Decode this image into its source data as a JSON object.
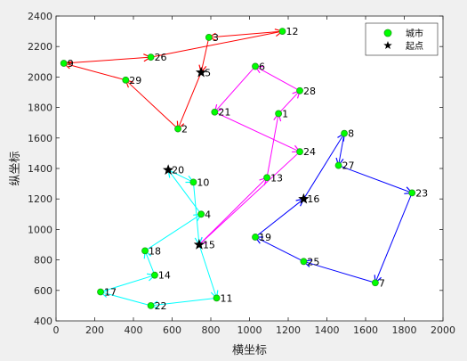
{
  "chart_data": {
    "type": "line",
    "xlabel": "横坐标",
    "ylabel": "纵坐标",
    "xlim": [
      0,
      2000
    ],
    "ylim": [
      400,
      2400
    ],
    "xticks": [
      0,
      200,
      400,
      600,
      800,
      1000,
      1200,
      1400,
      1600,
      1800,
      2000
    ],
    "yticks": [
      400,
      600,
      800,
      1000,
      1200,
      1400,
      1600,
      1800,
      2000,
      2200,
      2400
    ],
    "grid": false,
    "legend": {
      "placement": "top-right",
      "entries": [
        {
          "label": "城市",
          "marker": "circle",
          "color": "#00ff00"
        },
        {
          "label": "起点",
          "marker": "star",
          "color": "#000000"
        }
      ]
    },
    "cities": [
      {
        "id": "1",
        "x": 1150,
        "y": 1760
      },
      {
        "id": "2",
        "x": 630,
        "y": 1660
      },
      {
        "id": "3",
        "x": 790,
        "y": 2260
      },
      {
        "id": "4",
        "x": 750,
        "y": 1100
      },
      {
        "id": "5",
        "x": 750,
        "y": 2030
      },
      {
        "id": "6",
        "x": 1030,
        "y": 2070
      },
      {
        "id": "7",
        "x": 1650,
        "y": 650
      },
      {
        "id": "8",
        "x": 1490,
        "y": 1630
      },
      {
        "id": "9",
        "x": 40,
        "y": 2090
      },
      {
        "id": "10",
        "x": 710,
        "y": 1310
      },
      {
        "id": "11",
        "x": 830,
        "y": 550
      },
      {
        "id": "12",
        "x": 1170,
        "y": 2300
      },
      {
        "id": "13",
        "x": 1090,
        "y": 1340
      },
      {
        "id": "14",
        "x": 510,
        "y": 700
      },
      {
        "id": "15",
        "x": 740,
        "y": 900
      },
      {
        "id": "16",
        "x": 1280,
        "y": 1200
      },
      {
        "id": "17",
        "x": 230,
        "y": 590
      },
      {
        "id": "18",
        "x": 460,
        "y": 860
      },
      {
        "id": "19",
        "x": 1030,
        "y": 950
      },
      {
        "id": "20",
        "x": 580,
        "y": 1390
      },
      {
        "id": "21",
        "x": 820,
        "y": 1770
      },
      {
        "id": "22",
        "x": 490,
        "y": 500
      },
      {
        "id": "23",
        "x": 1840,
        "y": 1240
      },
      {
        "id": "24",
        "x": 1260,
        "y": 1510
      },
      {
        "id": "25",
        "x": 1280,
        "y": 790
      },
      {
        "id": "26",
        "x": 490,
        "y": 2130
      },
      {
        "id": "27",
        "x": 1460,
        "y": 1420
      },
      {
        "id": "28",
        "x": 1260,
        "y": 1910
      },
      {
        "id": "29",
        "x": 360,
        "y": 1980
      }
    ],
    "starts": [
      "5",
      "15",
      "16",
      "20"
    ],
    "series": [
      {
        "color": "#ff0000",
        "route": [
          "5",
          "2",
          "29",
          "9",
          "26",
          "12",
          "3",
          "5"
        ]
      },
      {
        "color": "#ff00ff",
        "route": [
          "15",
          "13",
          "1",
          "28",
          "6",
          "21",
          "24",
          "15"
        ]
      },
      {
        "color": "#00ffff",
        "route": [
          "20",
          "10",
          "15",
          "11",
          "22",
          "17",
          "14",
          "18",
          "4",
          "20"
        ]
      },
      {
        "color": "#0000ff",
        "route": [
          "16",
          "8",
          "27",
          "23",
          "7",
          "25",
          "19",
          "16"
        ]
      }
    ]
  }
}
